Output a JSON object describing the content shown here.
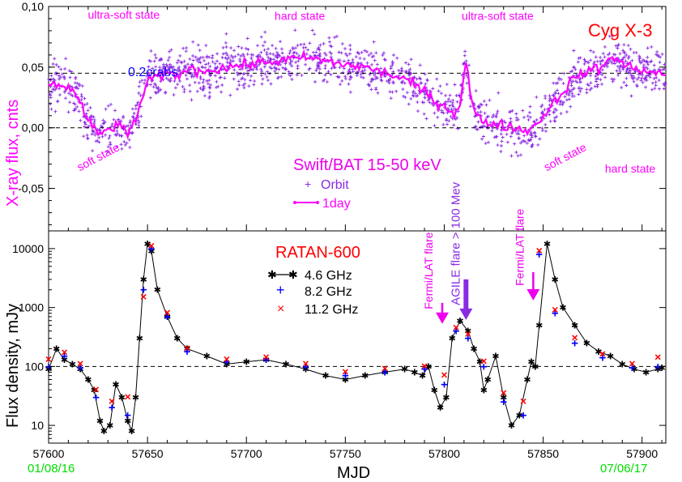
{
  "colors": {
    "xray_orbit": "#8a2be2",
    "xray_day": "#ff00ff",
    "state_label": "#ff00ff",
    "source": "#ff0000",
    "crab_ref": "#0000ff",
    "ratan_title": "#ff0000",
    "f46": "#000000",
    "f82": "#0000ff",
    "f112": "#ff0000",
    "fermi": "#ee00ee",
    "agile": "#8a2be2",
    "date": "#00dd00"
  },
  "chart_data": [
    {
      "type": "scatter",
      "panel": "top",
      "ylabel": "X-ray flux, cnts",
      "xlim": [
        57600,
        57912
      ],
      "ylim": [
        -0.085,
        0.1
      ],
      "yticks": [
        "0,10",
        "0,05",
        "0,00",
        "-0,05"
      ],
      "ytick_values": [
        0.1,
        0.05,
        0.0,
        -0.05
      ],
      "reference_lines": [
        {
          "y": 0.045,
          "label": "0.2crabs"
        },
        {
          "y": 0.0,
          "label": ""
        }
      ],
      "source_label": "Cyg X-3",
      "instrument_label": "Swift/BAT  15-50 keV",
      "legend": [
        "Orbit",
        "1day"
      ],
      "state_labels": [
        {
          "text": "ultra-soft state",
          "x": 57638,
          "y": 0.09
        },
        {
          "text": "hard state",
          "x": 57727,
          "y": 0.089
        },
        {
          "text": "ultra-soft state",
          "x": 57827,
          "y": 0.089
        },
        {
          "text": "soft state",
          "x": 57626,
          "y": -0.027
        },
        {
          "text": "soft state",
          "x": 57862,
          "y": -0.027
        },
        {
          "text": "hard state",
          "x": 57894,
          "y": -0.037
        }
      ],
      "series": [
        {
          "name": "1day",
          "x": [
            57600,
            57605,
            57610,
            57615,
            57620,
            57625,
            57630,
            57635,
            57640,
            57645,
            57650,
            57655,
            57660,
            57665,
            57670,
            57680,
            57690,
            57700,
            57710,
            57720,
            57730,
            57740,
            57750,
            57760,
            57770,
            57780,
            57790,
            57795,
            57800,
            57805,
            57808,
            57811,
            57814,
            57817,
            57820,
            57830,
            57835,
            57840,
            57845,
            57850,
            57855,
            57860,
            57865,
            57870,
            57875,
            57880,
            57885,
            57890,
            57895,
            57900,
            57905,
            57910
          ],
          "y": [
            0.035,
            0.036,
            0.033,
            0.025,
            0.005,
            -0.005,
            -0.002,
            0.003,
            -0.006,
            0.012,
            0.038,
            0.042,
            0.045,
            0.043,
            0.048,
            0.047,
            0.05,
            0.052,
            0.054,
            0.056,
            0.058,
            0.055,
            0.052,
            0.05,
            0.045,
            0.04,
            0.03,
            0.022,
            0.018,
            0.012,
            0.02,
            0.055,
            0.02,
            0.008,
            0.005,
            0.002,
            0.0,
            -0.002,
            0.0,
            0.01,
            0.02,
            0.03,
            0.04,
            0.045,
            0.048,
            0.05,
            0.06,
            0.052,
            0.05,
            0.048,
            0.045,
            0.045
          ]
        }
      ]
    },
    {
      "type": "line",
      "panel": "bottom",
      "title": "RATAN-600",
      "xlabel": "MJD",
      "ylabel": "Flux density, mJy",
      "xlim": [
        57600,
        57912
      ],
      "ylim": [
        5,
        20000
      ],
      "yscale": "log",
      "yticks": [
        "10",
        "100",
        "1000",
        "10000"
      ],
      "ytick_values": [
        10,
        100,
        1000,
        10000
      ],
      "xticks": [
        "57600",
        "57650",
        "57700",
        "57750",
        "57800",
        "57850",
        "57900"
      ],
      "xtick_values": [
        57600,
        57650,
        57700,
        57750,
        57800,
        57850,
        57900
      ],
      "reference_lines": [
        {
          "y": 100
        }
      ],
      "dates": [
        {
          "text": "01/08/16",
          "x": 57600
        },
        {
          "text": "07/06/17",
          "x": 57912
        }
      ],
      "annotations": [
        {
          "text": "Fermi/LAT flare",
          "x": 57799,
          "arrow_from": 1200,
          "arrow_to": 600
        },
        {
          "text": "AGILE flare > 100 Mev",
          "x": 57811,
          "arrow_from": 3000,
          "arrow_to": 700
        },
        {
          "text": "Fermi/LAT flare",
          "x": 57845,
          "arrow_from": 4000,
          "arrow_to": 1500
        }
      ],
      "legend": [
        "4.6 GHz",
        "8.2 GHz",
        "11.2 GHz"
      ],
      "series": [
        {
          "name": "4.6 GHz",
          "x": [
            57600,
            57604,
            57608,
            57612,
            57616,
            57620,
            57623,
            57626,
            57628,
            57631,
            57634,
            57637,
            57640,
            57642,
            57644,
            57646,
            57648,
            57650,
            57652,
            57655,
            57660,
            57665,
            57670,
            57680,
            57690,
            57700,
            57710,
            57720,
            57730,
            57740,
            57750,
            57760,
            57770,
            57780,
            57785,
            57789,
            57792,
            57795,
            57798,
            57801,
            57804,
            57808,
            57812,
            57815,
            57818,
            57820,
            57822,
            57826,
            57830,
            57834,
            57838,
            57842,
            57844,
            57846,
            57848,
            57852,
            57856,
            57860,
            57866,
            57872,
            57878,
            57884,
            57890,
            57896,
            57902,
            57908,
            57910
          ],
          "y": [
            90,
            200,
            130,
            110,
            90,
            60,
            40,
            12,
            8,
            10,
            50,
            30,
            12,
            8,
            30,
            300,
            3000,
            12000,
            9000,
            2000,
            700,
            300,
            200,
            150,
            110,
            120,
            130,
            110,
            90,
            70,
            60,
            70,
            80,
            90,
            80,
            70,
            100,
            40,
            20,
            30,
            300,
            600,
            400,
            200,
            120,
            40,
            60,
            150,
            30,
            10,
            15,
            60,
            120,
            100,
            500,
            12000,
            3000,
            1000,
            500,
            250,
            180,
            150,
            110,
            90,
            80,
            90,
            95
          ]
        },
        {
          "name": "8.2 GHz",
          "x": [
            57600,
            57608,
            57616,
            57624,
            57632,
            57640,
            57648,
            57652,
            57660,
            57670,
            57690,
            57710,
            57730,
            57750,
            57770,
            57790,
            57800,
            57806,
            57812,
            57820,
            57830,
            57840,
            57848,
            57856,
            57866,
            57880,
            57895,
            57908
          ],
          "y": [
            100,
            150,
            95,
            30,
            20,
            15,
            2000,
            10000,
            700,
            180,
            120,
            130,
            100,
            70,
            80,
            90,
            50,
            400,
            300,
            100,
            25,
            15,
            8000,
            800,
            250,
            140,
            95,
            100
          ]
        },
        {
          "name": "11.2 GHz",
          "x": [
            57600,
            57608,
            57616,
            57624,
            57632,
            57640,
            57648,
            57652,
            57660,
            57670,
            57690,
            57710,
            57730,
            57750,
            57770,
            57790,
            57800,
            57806,
            57812,
            57820,
            57830,
            57840,
            57848,
            57856,
            57866,
            57880,
            57895,
            57908
          ],
          "y": [
            130,
            170,
            110,
            40,
            25,
            30,
            1500,
            11000,
            800,
            200,
            130,
            140,
            110,
            80,
            90,
            100,
            70,
            450,
            350,
            120,
            35,
            25,
            9000,
            900,
            300,
            160,
            110,
            140
          ]
        }
      ]
    }
  ]
}
